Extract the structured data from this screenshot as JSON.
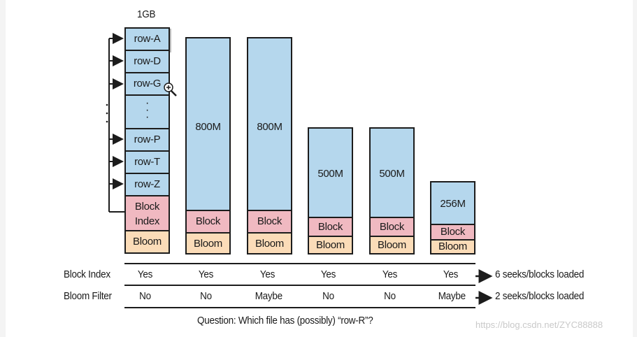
{
  "file1": {
    "size": "1GB",
    "rows": [
      "row-A",
      "row-D",
      "row-G",
      ":",
      "row-P",
      "row-T",
      "row-Z"
    ],
    "block_index": "Block Index",
    "bloom": "Bloom"
  },
  "files": [
    {
      "size": "800M",
      "block": "Block",
      "bloom": "Bloom"
    },
    {
      "size": "800M",
      "block": "Block",
      "bloom": "Bloom"
    },
    {
      "size": "500M",
      "block": "Block",
      "bloom": "Bloom"
    },
    {
      "size": "500M",
      "block": "Block",
      "bloom": "Bloom"
    },
    {
      "size": "256M",
      "block": "Block",
      "bloom": "Bloom"
    }
  ],
  "table": {
    "block_index_label": "Block Index",
    "bloom_filter_label": "Bloom Filter",
    "block_index_values": [
      "Yes",
      "Yes",
      "Yes",
      "Yes",
      "Yes",
      "Yes"
    ],
    "bloom_filter_values": [
      "No",
      "No",
      "Maybe",
      "No",
      "No",
      "Maybe"
    ],
    "block_index_result": "6 seeks/blocks loaded",
    "bloom_filter_result": "2 seeks/blocks loaded"
  },
  "question": "Question: Which file has (possibly) “row-R”?",
  "watermark": "https://blog.csdn.net/ZYC88888",
  "colors": {
    "data": "#b5d7ed",
    "block": "#f0b9c1",
    "bloom": "#fbdcb8"
  }
}
